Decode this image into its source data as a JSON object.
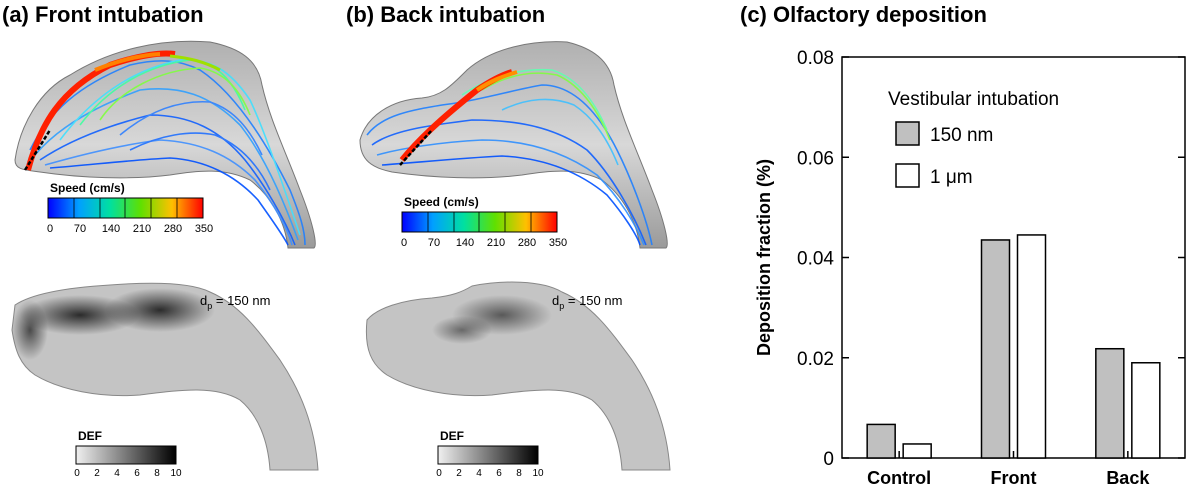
{
  "panels": {
    "a": {
      "title": "(a) Front intubation"
    },
    "b": {
      "title": "(b) Back intubation"
    },
    "c": {
      "title": "(c) Olfactory deposition"
    }
  },
  "speed_scale": {
    "title": "Speed (cm/s)",
    "ticks": [
      "0",
      "70",
      "140",
      "210",
      "280",
      "350"
    ],
    "colors": [
      "#0000ff",
      "#00a0ff",
      "#00e0e0",
      "#00e080",
      "#40e000",
      "#c0e000",
      "#ffc000",
      "#ff6000",
      "#ff0000"
    ]
  },
  "def_scale": {
    "title": "DEF",
    "ticks": [
      "0",
      "2",
      "4",
      "6",
      "8",
      "10"
    ],
    "colors": [
      "#e8e8e8",
      "#c8c8c8",
      "#a8a8a8",
      "#888888",
      "#5a5a5a",
      "#2a2a2a",
      "#0a0a0a"
    ]
  },
  "particle_label": {
    "prefix": "d",
    "subscript": "p",
    "suffix": " = 150 nm"
  },
  "chart_data": {
    "type": "bar",
    "title": "(c) Olfactory deposition",
    "categories": [
      "Control",
      "Front",
      "Back"
    ],
    "series": [
      {
        "name": "150 nm",
        "values": [
          0.0067,
          0.0435,
          0.0218
        ],
        "fill": "#c0c0c0"
      },
      {
        "name": "1 μm",
        "values": [
          0.0028,
          0.0445,
          0.019
        ],
        "fill": "#ffffff"
      }
    ],
    "legend_title": "Vestibular intubation",
    "xlabel": "",
    "ylabel": "Deposition fraction (%)",
    "ylim": [
      0,
      0.08
    ],
    "yticks": [
      "0",
      "0.02",
      "0.04",
      "0.06",
      "0.08"
    ],
    "grid": false,
    "legend_position": "top-right"
  }
}
